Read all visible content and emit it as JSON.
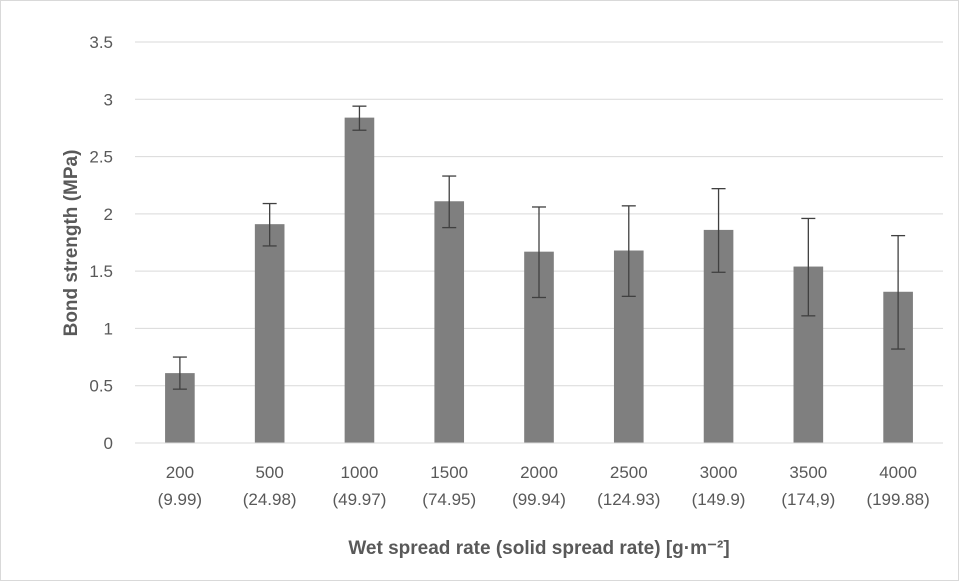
{
  "chart_data": {
    "type": "bar",
    "categories": [
      "200 (9.99)",
      "500 (24.98)",
      "1000 (49.97)",
      "1500 (74.95)",
      "2000 (99.94)",
      "2500 (124.93)",
      "3000 (149.9)",
      "3500 (174,9)",
      "4000 (199.88)"
    ],
    "category_lines": [
      [
        "200",
        "(9.99)"
      ],
      [
        "500",
        "(24.98)"
      ],
      [
        "1000",
        "(49.97)"
      ],
      [
        "1500",
        "(74.95)"
      ],
      [
        "2000",
        "(99.94)"
      ],
      [
        "2500",
        "(124.93)"
      ],
      [
        "3000",
        "(149.9)"
      ],
      [
        "3500",
        "(174,9)"
      ],
      [
        "4000",
        "(199.88)"
      ]
    ],
    "values": [
      0.61,
      1.91,
      2.84,
      2.11,
      1.67,
      1.68,
      1.86,
      1.54,
      1.32
    ],
    "error_upper": [
      0.75,
      2.09,
      2.94,
      2.33,
      2.06,
      2.07,
      2.22,
      1.96,
      1.81
    ],
    "error_lower": [
      0.47,
      1.72,
      2.73,
      1.88,
      1.27,
      1.28,
      1.49,
      1.11,
      0.82
    ],
    "title": "",
    "xlabel": "Wet spread rate (solid spread rate) [g·m⁻²]",
    "ylabel": "Bond strength (MPa)",
    "ylim": [
      0,
      3.5
    ],
    "yticks": [
      0,
      0.5,
      1,
      1.5,
      2,
      2.5,
      3,
      3.5
    ],
    "ytick_labels": [
      "0",
      "0.5",
      "1",
      "1.5",
      "2",
      "2.5",
      "3",
      "3.5"
    ],
    "grid": true,
    "legend": "none",
    "bar_color": "#7f7f7f",
    "error_bar_color": "#404040",
    "grid_color": "#d9d9d9"
  }
}
